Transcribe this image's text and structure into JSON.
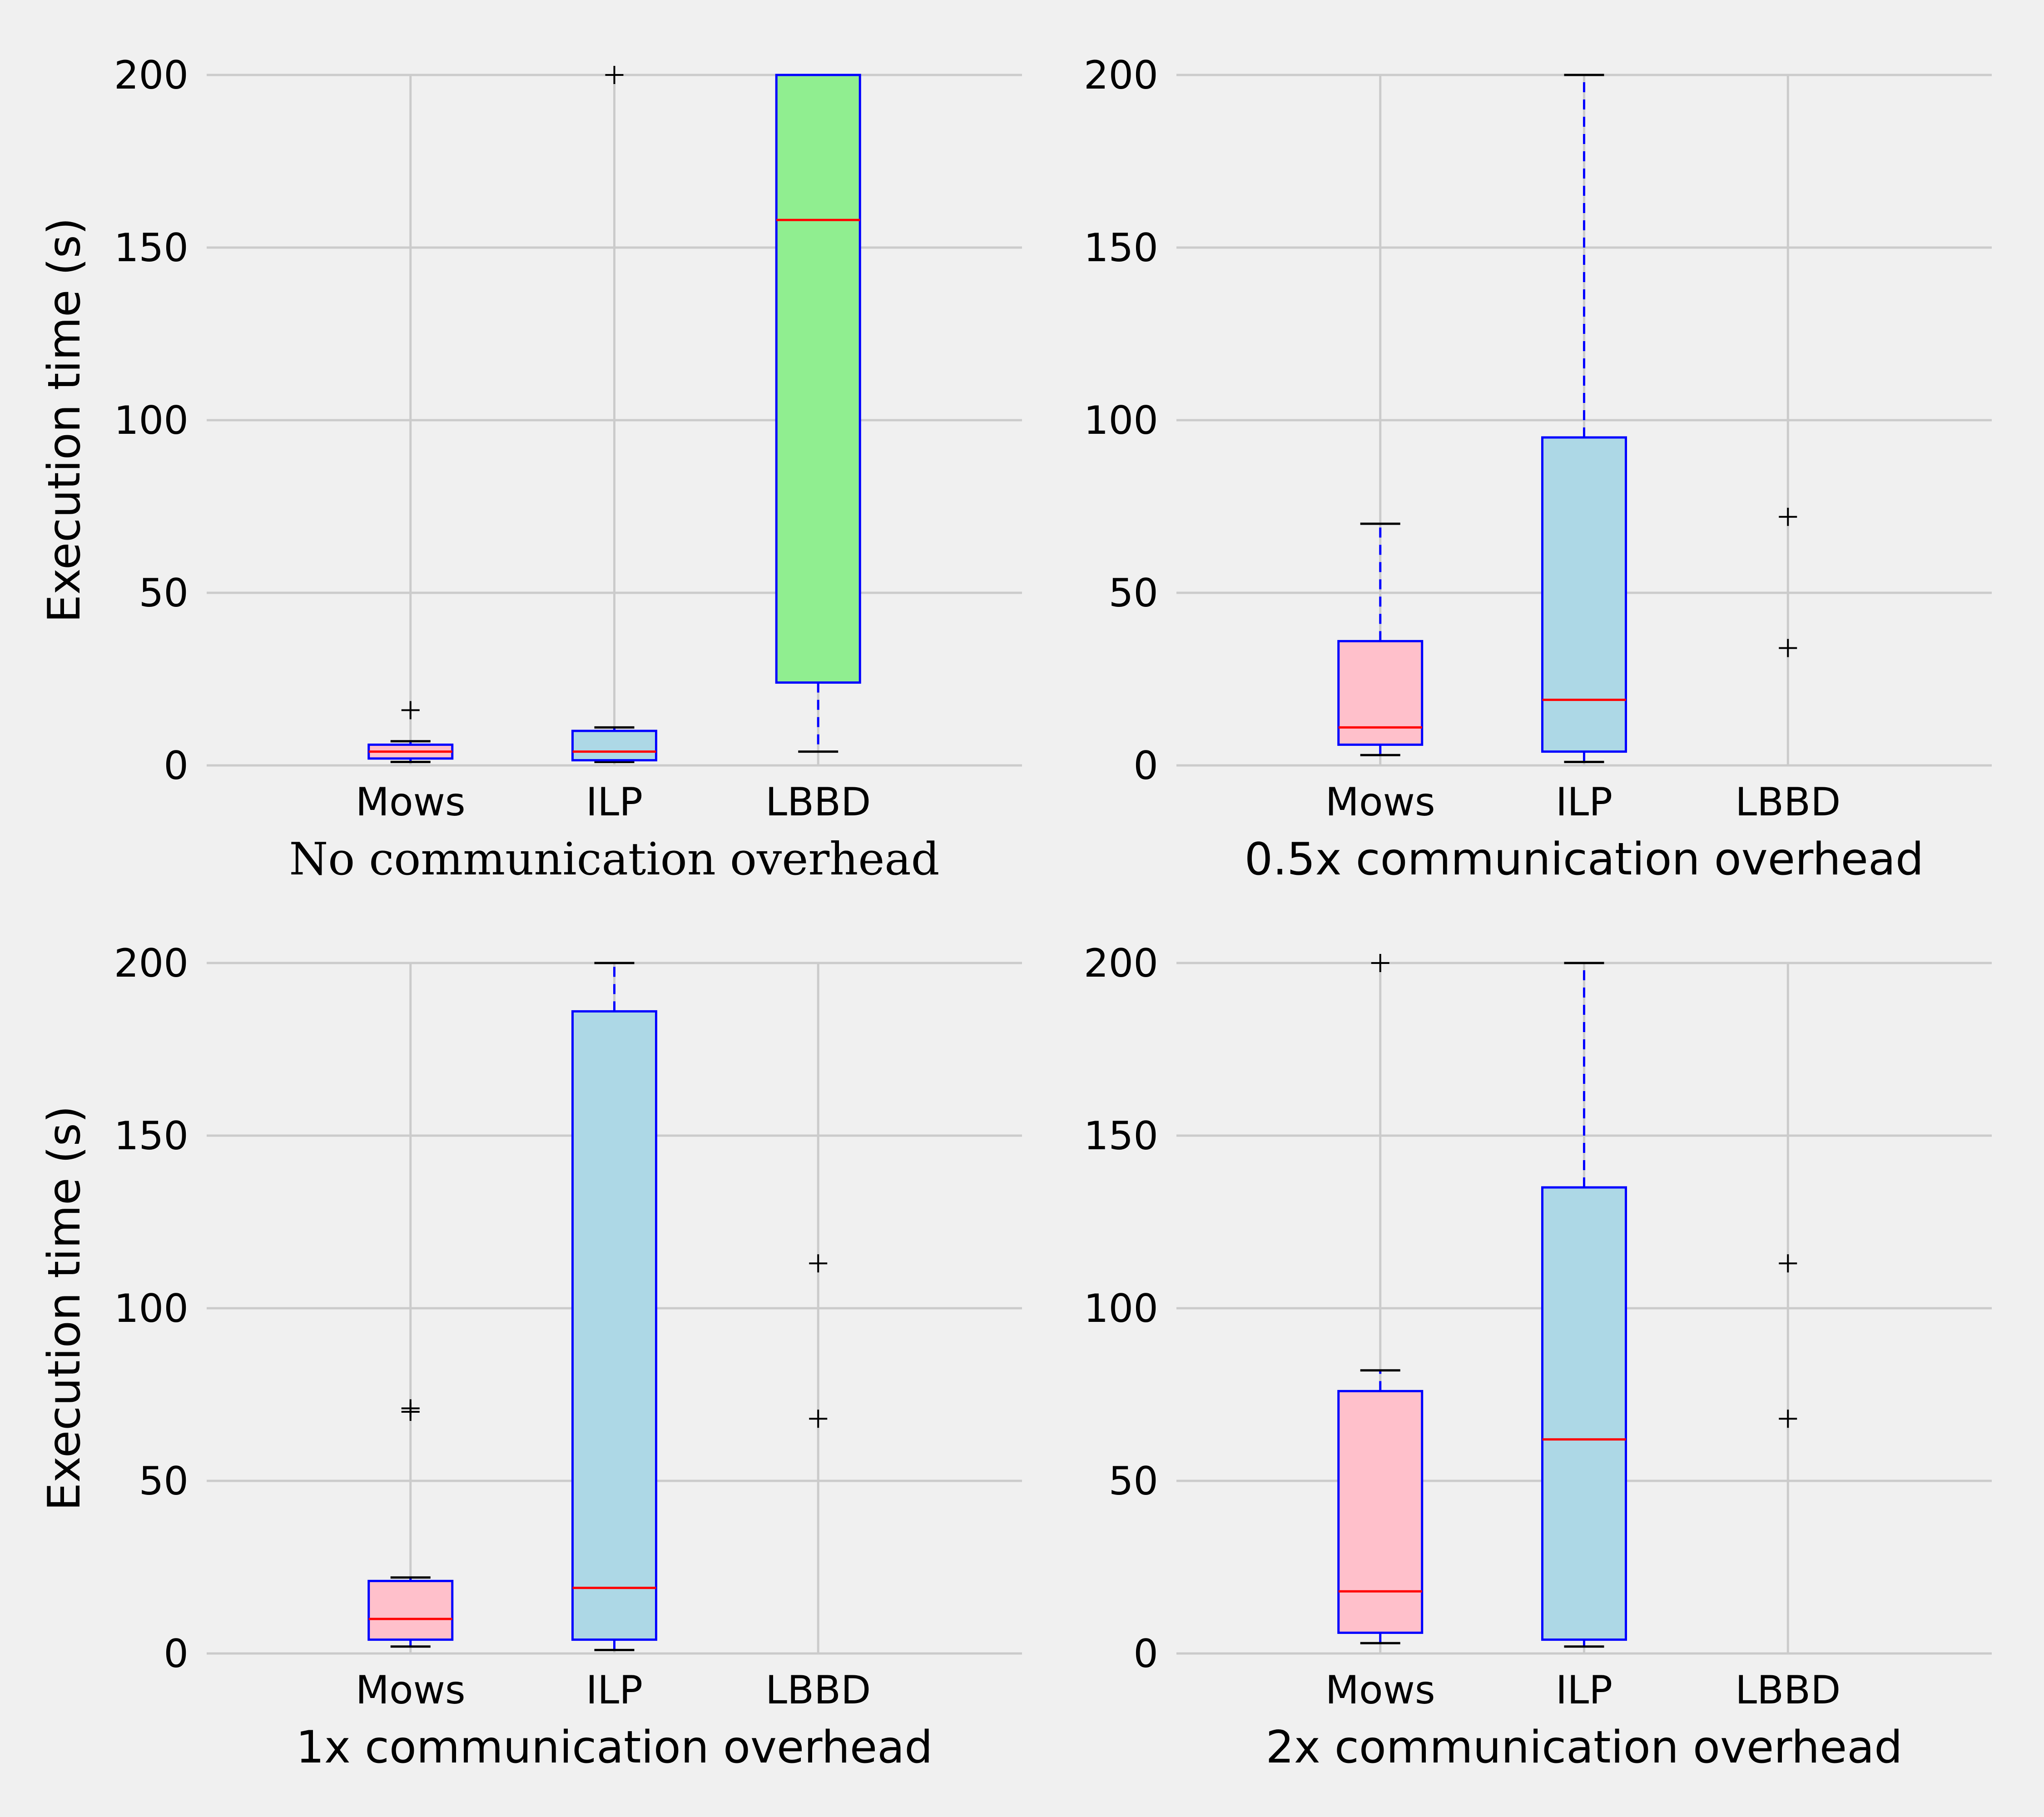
{
  "chart_data": [
    {
      "type": "box",
      "panel": "top-left",
      "xlabel": "No communication overhead",
      "ylabel": "Execution time (s)",
      "ylim": [
        0,
        200
      ],
      "yticks": [
        0,
        50,
        100,
        150,
        200
      ],
      "categories": [
        "Mows",
        "ILP",
        "LBBD"
      ],
      "grid": true,
      "boxes": [
        {
          "category": "Mows",
          "fill": "#ffc0cb",
          "whisker_low": 1,
          "q1": 2,
          "median": 4,
          "q3": 6,
          "whisker_high": 7,
          "outliers": [
            16
          ]
        },
        {
          "category": "ILP",
          "fill": "#add8e6",
          "whisker_low": 1,
          "q1": 1.5,
          "median": 4,
          "q3": 10,
          "whisker_high": 11,
          "outliers": [
            200
          ]
        },
        {
          "category": "LBBD",
          "fill": "#90ee90",
          "whisker_low": 4,
          "q1": 24,
          "median": 158,
          "q3": 200,
          "whisker_high": 200,
          "outliers": []
        }
      ]
    },
    {
      "type": "box",
      "panel": "top-right",
      "xlabel": "0.5x communication overhead",
      "ylabel": "",
      "ylim": [
        0,
        200
      ],
      "yticks": [
        0,
        50,
        100,
        150,
        200
      ],
      "categories": [
        "Mows",
        "ILP",
        "LBBD"
      ],
      "grid": true,
      "boxes": [
        {
          "category": "Mows",
          "fill": "#ffc0cb",
          "whisker_low": 3,
          "q1": 6,
          "median": 11,
          "q3": 36,
          "whisker_high": 70,
          "outliers": []
        },
        {
          "category": "ILP",
          "fill": "#add8e6",
          "whisker_low": 1,
          "q1": 4,
          "median": 19,
          "q3": 95,
          "whisker_high": 200,
          "outliers": []
        },
        {
          "category": "LBBD",
          "fill": "#90ee90",
          "whisker_low": null,
          "q1": null,
          "median": null,
          "q3": null,
          "whisker_high": null,
          "outliers": [
            72,
            34
          ]
        }
      ]
    },
    {
      "type": "box",
      "panel": "bottom-left",
      "xlabel": "1x communication overhead",
      "ylabel": "Execution time (s)",
      "ylim": [
        0,
        200
      ],
      "yticks": [
        0,
        50,
        100,
        150,
        200
      ],
      "categories": [
        "Mows",
        "ILP",
        "LBBD"
      ],
      "grid": true,
      "boxes": [
        {
          "category": "Mows",
          "fill": "#ffc0cb",
          "whisker_low": 2,
          "q1": 4,
          "median": 10,
          "q3": 21,
          "whisker_high": 22,
          "outliers": [
            70,
            71
          ]
        },
        {
          "category": "ILP",
          "fill": "#add8e6",
          "whisker_low": 1,
          "q1": 4,
          "median": 19,
          "q3": 186,
          "whisker_high": 200,
          "outliers": []
        },
        {
          "category": "LBBD",
          "fill": "#90ee90",
          "whisker_low": null,
          "q1": null,
          "median": null,
          "q3": null,
          "whisker_high": null,
          "outliers": [
            113,
            68
          ]
        }
      ]
    },
    {
      "type": "box",
      "panel": "bottom-right",
      "xlabel": "2x communication overhead",
      "ylabel": "",
      "ylim": [
        0,
        200
      ],
      "yticks": [
        0,
        50,
        100,
        150,
        200
      ],
      "categories": [
        "Mows",
        "ILP",
        "LBBD"
      ],
      "grid": true,
      "boxes": [
        {
          "category": "Mows",
          "fill": "#ffc0cb",
          "whisker_low": 3,
          "q1": 6,
          "median": 18,
          "q3": 76,
          "whisker_high": 82,
          "outliers": [
            200
          ]
        },
        {
          "category": "ILP",
          "fill": "#add8e6",
          "whisker_low": 2,
          "q1": 4,
          "median": 62,
          "q3": 135,
          "whisker_high": 200,
          "outliers": []
        },
        {
          "category": "LBBD",
          "fill": "#90ee90",
          "whisker_low": null,
          "q1": null,
          "median": null,
          "q3": null,
          "whisker_high": null,
          "outliers": [
            113,
            68
          ]
        }
      ]
    }
  ],
  "colors": {
    "background": "#f0f0f0",
    "grid": "#cbcbcb",
    "box_edge": "#0000ff",
    "median": "#ff0000",
    "whisker": "#0000ff",
    "cap": "#000000",
    "outlier": "#000000"
  }
}
